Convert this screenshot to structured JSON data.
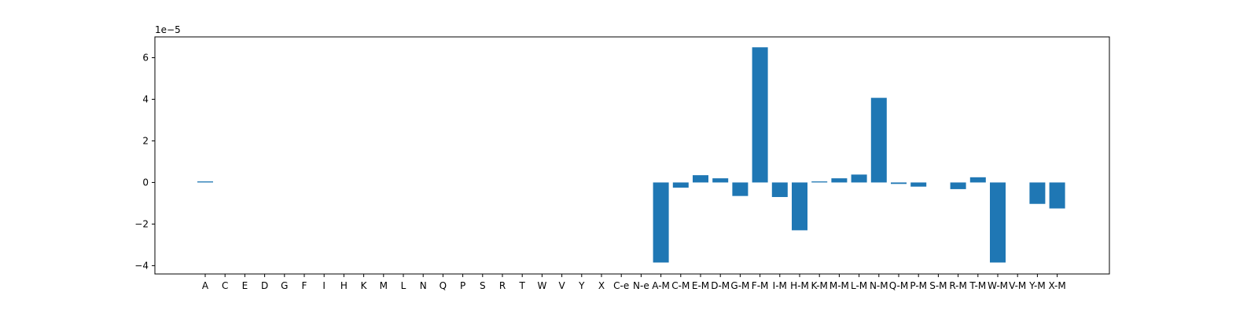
{
  "chart_data": {
    "type": "bar",
    "title": "",
    "xlabel": "",
    "ylabel": "",
    "offset_text": "1e−5",
    "scale_factor": 1e-05,
    "ylim": [
      -4.4e-05,
      7e-05
    ],
    "yticks": [
      -4e-05,
      -2e-05,
      0,
      2e-05,
      4e-05,
      6e-05
    ],
    "ytick_labels": [
      "−4",
      "−2",
      "0",
      "2",
      "4",
      "6"
    ],
    "grid": false,
    "legend": "none",
    "bar_color": "#1f77b4",
    "categories": [
      "A",
      "C",
      "E",
      "D",
      "G",
      "F",
      "I",
      "H",
      "K",
      "M",
      "L",
      "N",
      "Q",
      "P",
      "S",
      "R",
      "T",
      "W",
      "V",
      "Y",
      "X",
      "C-e",
      "N-e",
      "A-M",
      "C-M",
      "E-M",
      "D-M",
      "G-M",
      "F-M",
      "I-M",
      "H-M",
      "K-M",
      "M-M",
      "L-M",
      "N-M",
      "Q-M",
      "P-M",
      "S-M",
      "R-M",
      "T-M",
      "W-M",
      "V-M",
      "Y-M",
      "X-M"
    ],
    "values": [
      5e-07,
      0,
      0,
      0,
      0,
      0,
      0,
      0,
      0,
      0,
      0,
      0,
      0,
      0,
      0,
      0,
      0,
      0,
      0,
      0,
      0,
      0,
      0,
      -3.85e-05,
      -2.5e-06,
      3.5e-06,
      2e-06,
      -6.5e-06,
      6.5e-05,
      -7e-06,
      -2.3e-05,
      5e-07,
      2e-06,
      3.8e-06,
      4.07e-05,
      -7e-07,
      -2e-06,
      0,
      -3.2e-06,
      2.5e-06,
      -3.85e-05,
      0,
      -1.03e-05,
      -1.25e-05
    ]
  }
}
